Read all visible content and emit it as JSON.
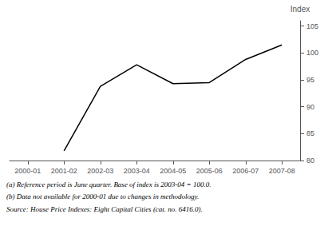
{
  "chart_data": {
    "type": "line",
    "categories": [
      "2000-01",
      "2001-02",
      "2002-03",
      "2003-04",
      "2004-05",
      "2005-06",
      "2006-07",
      "2007-08"
    ],
    "values": [
      null,
      81.8,
      93.8,
      97.8,
      94.3,
      94.5,
      98.8,
      101.5
    ],
    "color": "#000000",
    "y_label": "Index",
    "ylim": [
      80,
      106
    ],
    "yticks": [
      80,
      85,
      90,
      95,
      100,
      105
    ],
    "grid": false,
    "annotations": [
      "(a) Reference period is June quarter. Base of index is 2003-04 = 100.0.",
      "(b) Data not available for 2000-01 due to changes in methodology.",
      "Source: House Price Indexes: Eight Capital Cities (cat. no. 6416.0)."
    ]
  }
}
